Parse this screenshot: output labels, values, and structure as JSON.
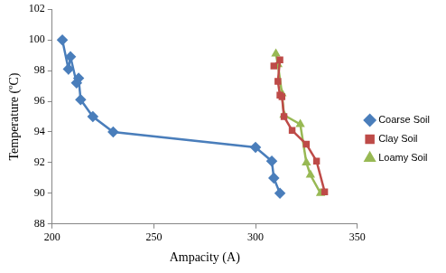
{
  "chart_data": {
    "type": "line",
    "x_label": "Ampacity (A)",
    "y_label": "Temperature (ºC)",
    "xlim": [
      200,
      350
    ],
    "xticks": [
      200,
      250,
      300,
      350
    ],
    "ylim": [
      88,
      102
    ],
    "yticks": [
      88,
      90,
      92,
      94,
      96,
      98,
      100,
      102
    ],
    "grid": false,
    "legend": "right",
    "series": [
      {
        "name": "Coarse Soil",
        "color": "#4a7ebb",
        "marker": "diamond",
        "x": [
          205,
          208,
          209,
          212,
          213,
          214,
          220,
          230,
          300,
          308,
          309,
          312
        ],
        "values": [
          100,
          98.1,
          98.9,
          97.2,
          97.5,
          96.1,
          95,
          94,
          93,
          92.1,
          91,
          90
        ]
      },
      {
        "name": "Clay Soil",
        "color": "#be4b48",
        "marker": "square",
        "x": [
          309,
          312,
          311,
          312,
          313,
          314,
          318,
          325,
          330,
          334
        ],
        "values": [
          98.3,
          98.7,
          97.3,
          96.4,
          96.3,
          95,
          94.1,
          93.2,
          92.1,
          90.1
        ]
      },
      {
        "name": "Loamy Soil",
        "color": "#98b954",
        "marker": "triangle",
        "x": [
          310,
          311,
          313,
          314,
          322,
          325,
          327,
          332
        ],
        "values": [
          99.1,
          98.4,
          96.5,
          95.1,
          94.5,
          92,
          91.2,
          90
        ]
      }
    ]
  }
}
